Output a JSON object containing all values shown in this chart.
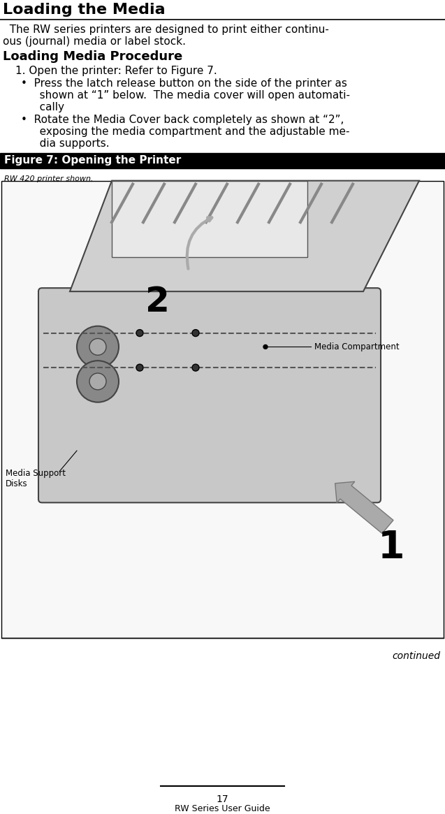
{
  "title": "Loading the Media",
  "bg_color": "#ffffff",
  "title_color": "#000000",
  "title_fontsize": 16,
  "body_text_1": "  The RW series printers are designed to print either continu-\nous (journal) media or label stock.",
  "section_heading": "Loading Media Procedure",
  "step1": "   1. Open the printer: Refer to Figure 7.",
  "bullet1_line1": "   •  Press the latch release button on the side of the printer as",
  "bullet1_line2": "      shown at “1” below.  The media cover will open automati-",
  "bullet1_line3": "      cally",
  "bullet2_line1": "   •  Rotate the Media Cover back completely as shown at “2”,",
  "bullet2_line2": "      exposing the media compartment and the adjustable me-",
  "bullet2_line3": "      dia supports.",
  "figure_bar_color": "#000000",
  "figure_bar_text": "Figure 7: Opening the Printer",
  "figure_bar_text_color": "#ffffff",
  "figure_sub_text": "RW 420 printer shown.",
  "label_media_compartment": "Media Compartment",
  "label_media_support": "Media Support\nDisks",
  "continued_text": "continued",
  "page_number": "17",
  "footer_text": "RW Series User Guide",
  "image_box_color": "#ffffff",
  "image_border_color": "#000000",
  "callout_1_text": "1",
  "callout_2_text": "2"
}
